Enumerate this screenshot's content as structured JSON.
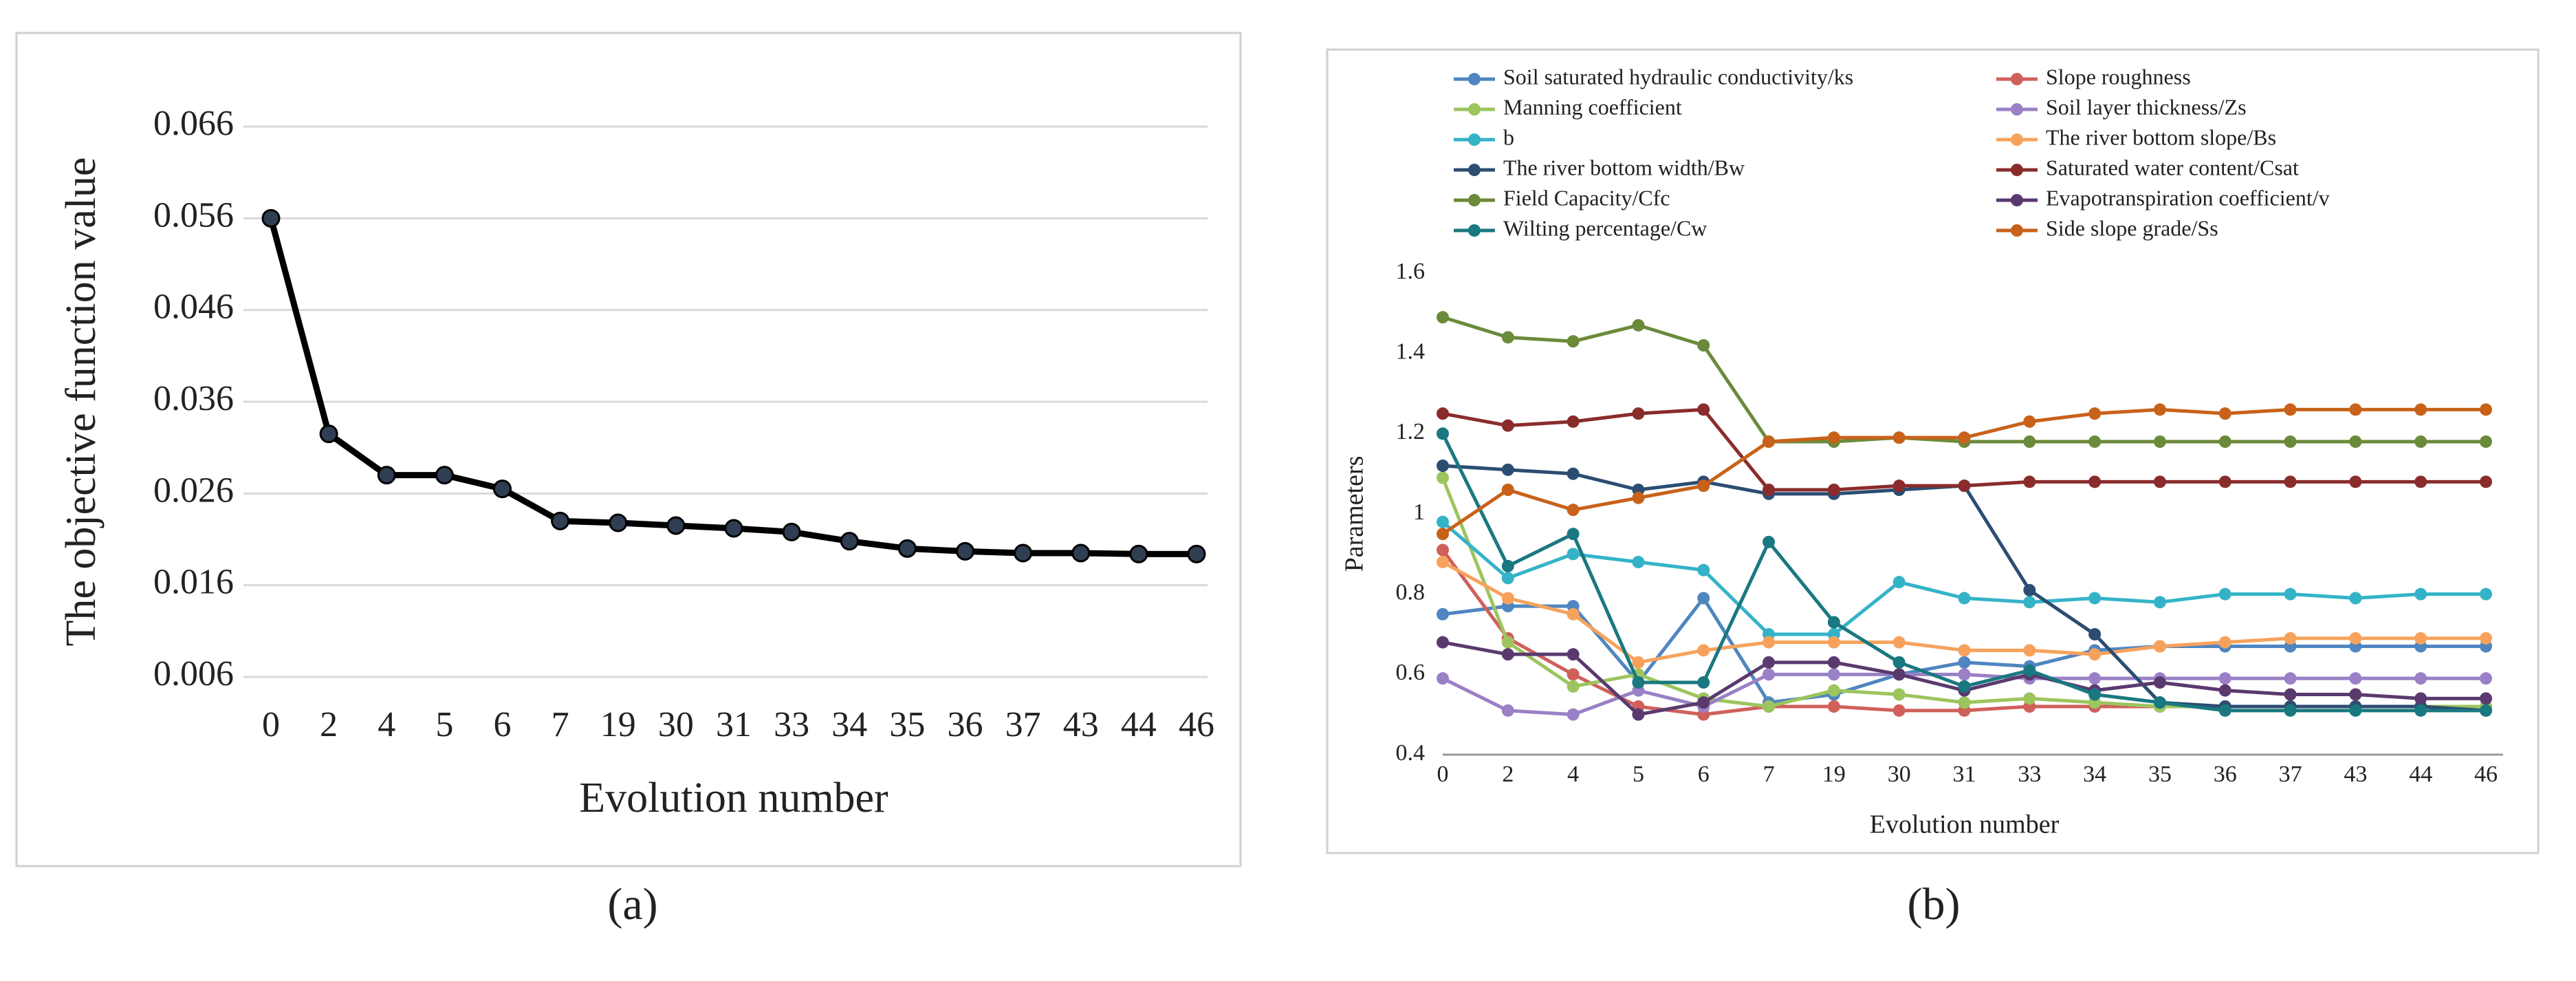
{
  "chart_data": [
    {
      "type": "line",
      "caption": "(a)",
      "x_label": "Evolution number",
      "y_label": "The objective function value",
      "categories": [
        "0",
        "2",
        "4",
        "5",
        "6",
        "7",
        "19",
        "30",
        "31",
        "33",
        "34",
        "35",
        "36",
        "37",
        "43",
        "44",
        "46"
      ],
      "values": [
        0.056,
        0.0325,
        0.028,
        0.028,
        0.0265,
        0.023,
        0.0228,
        0.0225,
        0.0222,
        0.0218,
        0.0208,
        0.02,
        0.0197,
        0.0195,
        0.0195,
        0.0194,
        0.0194
      ],
      "color": "#000000",
      "marker_color": "#2f3e52",
      "ylim": [
        0.006,
        0.066
      ],
      "yticks": [
        0.006,
        0.016,
        0.026,
        0.036,
        0.046,
        0.056,
        0.066
      ],
      "grid": true
    },
    {
      "type": "line",
      "caption": "(b)",
      "x_label": "Evolution number",
      "y_label": "Parameters",
      "categories": [
        "0",
        "2",
        "4",
        "5",
        "6",
        "7",
        "19",
        "30",
        "31",
        "33",
        "34",
        "35",
        "36",
        "37",
        "43",
        "44",
        "46"
      ],
      "ylim": [
        0.4,
        1.6
      ],
      "yticks": [
        0.4,
        0.6,
        0.8,
        1,
        1.2,
        1.4,
        1.6
      ],
      "grid": false,
      "legend": "top",
      "series": [
        {
          "name": "Soil saturated hydraulic conductivity/ks",
          "color": "#4f86c0",
          "values": [
            0.75,
            0.77,
            0.77,
            0.58,
            0.79,
            0.53,
            0.55,
            0.6,
            0.63,
            0.62,
            0.66,
            0.67,
            0.67,
            0.67,
            0.67,
            0.67,
            0.67
          ]
        },
        {
          "name": "Slope roughness",
          "color": "#d0605a",
          "values": [
            0.91,
            0.69,
            0.6,
            0.52,
            0.5,
            0.52,
            0.52,
            0.51,
            0.51,
            0.52,
            0.52,
            0.52,
            0.52,
            0.52,
            0.52,
            0.52,
            0.52
          ]
        },
        {
          "name": "Manning coefficient",
          "color": "#9cc55e",
          "values": [
            1.09,
            0.68,
            0.57,
            0.6,
            0.54,
            0.52,
            0.56,
            0.55,
            0.53,
            0.54,
            0.53,
            0.52,
            0.52,
            0.52,
            0.52,
            0.52,
            0.52
          ]
        },
        {
          "name": "Soil layer thickness/Zs",
          "color": "#9a80c6",
          "values": [
            0.59,
            0.51,
            0.5,
            0.56,
            0.52,
            0.6,
            0.6,
            0.6,
            0.6,
            0.59,
            0.59,
            0.59,
            0.59,
            0.59,
            0.59,
            0.59,
            0.59
          ]
        },
        {
          "name": "b",
          "color": "#34b3c8",
          "values": [
            0.98,
            0.84,
            0.9,
            0.88,
            0.86,
            0.7,
            0.7,
            0.83,
            0.79,
            0.78,
            0.79,
            0.78,
            0.8,
            0.8,
            0.79,
            0.8,
            0.8
          ]
        },
        {
          "name": "The river bottom slope/Bs",
          "color": "#f7a25c",
          "values": [
            0.88,
            0.79,
            0.75,
            0.63,
            0.66,
            0.68,
            0.68,
            0.68,
            0.66,
            0.66,
            0.65,
            0.67,
            0.68,
            0.69,
            0.69,
            0.69,
            0.69
          ]
        },
        {
          "name": "The river bottom width/Bw",
          "color": "#2c4d72",
          "values": [
            1.12,
            1.11,
            1.1,
            1.06,
            1.08,
            1.05,
            1.05,
            1.06,
            1.07,
            0.81,
            0.7,
            0.53,
            0.52,
            0.52,
            0.52,
            0.52,
            0.51
          ]
        },
        {
          "name": "Saturated water content/Csat",
          "color": "#8a2c2c",
          "values": [
            1.25,
            1.22,
            1.23,
            1.25,
            1.26,
            1.06,
            1.06,
            1.07,
            1.07,
            1.08,
            1.08,
            1.08,
            1.08,
            1.08,
            1.08,
            1.08,
            1.08
          ]
        },
        {
          "name": "Field Capacity/Cfc",
          "color": "#6b8a3a",
          "values": [
            1.49,
            1.44,
            1.43,
            1.47,
            1.42,
            1.18,
            1.18,
            1.19,
            1.18,
            1.18,
            1.18,
            1.18,
            1.18,
            1.18,
            1.18,
            1.18,
            1.18
          ]
        },
        {
          "name": "Evapotranspiration coefficient/v",
          "color": "#5a3a6e",
          "values": [
            0.68,
            0.65,
            0.65,
            0.5,
            0.53,
            0.63,
            0.63,
            0.6,
            0.56,
            0.6,
            0.56,
            0.58,
            0.56,
            0.55,
            0.55,
            0.54,
            0.54
          ]
        },
        {
          "name": "Wilting percentage/Cw",
          "color": "#1a7880",
          "values": [
            1.2,
            0.87,
            0.95,
            0.58,
            0.58,
            0.93,
            0.73,
            0.63,
            0.57,
            0.61,
            0.55,
            0.53,
            0.51,
            0.51,
            0.51,
            0.51,
            0.51
          ]
        },
        {
          "name": "Side slope grade/Ss",
          "color": "#c8621a",
          "values": [
            0.95,
            1.06,
            1.01,
            1.04,
            1.07,
            1.18,
            1.19,
            1.19,
            1.19,
            1.23,
            1.25,
            1.26,
            1.25,
            1.26,
            1.26,
            1.26,
            1.26
          ]
        }
      ]
    }
  ]
}
